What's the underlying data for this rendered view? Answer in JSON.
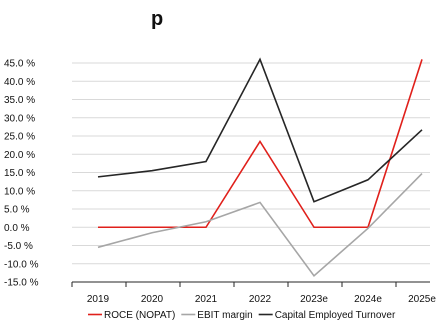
{
  "chart_data": {
    "type": "line",
    "title": "",
    "title_partial_visible": "p",
    "categories": [
      "2019",
      "2020",
      "2021",
      "2022",
      "2023e",
      "2024e",
      "2025e"
    ],
    "series": [
      {
        "name": "ROCE (NOPAT)",
        "color": "#e0201b",
        "values": [
          0.0,
          0.0,
          0.0,
          23.5,
          0.0,
          0.0,
          46.0
        ]
      },
      {
        "name": "EBIT margin",
        "color": "#a6a6a6",
        "values": [
          -5.5,
          -1.5,
          1.5,
          6.8,
          -13.3,
          -0.3,
          14.7
        ]
      },
      {
        "name": "Capital Employed Turnover",
        "color": "#262626",
        "values": [
          13.8,
          15.5,
          18.0,
          46.0,
          7.0,
          13.0,
          26.7
        ]
      }
    ],
    "y_ticks": [
      "45.0 %",
      "40.0 %",
      "35.0 %",
      "30.0 %",
      "25.0 %",
      "20.0 %",
      "15.0 %",
      "10.0 %",
      "5.0 %",
      "0.0 %",
      "-5.0 %",
      "-10.0 %",
      "-15.0 %"
    ],
    "ylim": [
      -15,
      45
    ],
    "grid": true,
    "legend_position": "bottom"
  }
}
